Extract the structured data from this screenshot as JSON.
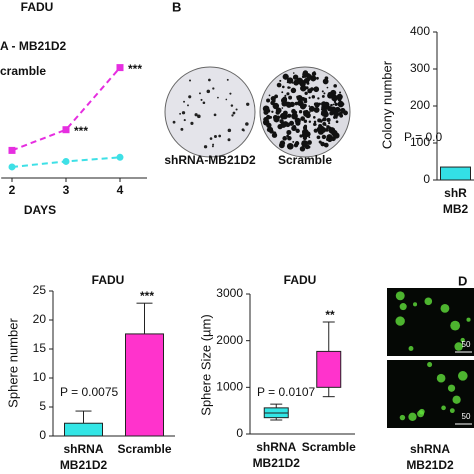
{
  "figure": {
    "panel_labels": [
      "B",
      "D"
    ],
    "colony_captions": [
      "shRNA-MB21D2",
      "Scramble"
    ],
    "micrograph_scale_labels": [
      "50",
      "50"
    ],
    "micrograph_caption": "shRNA MB21D2"
  },
  "chart_data": [
    {
      "type": "line",
      "title": "FADU",
      "x_label": "DAYS",
      "x": [
        2,
        3,
        4
      ],
      "xlim": [
        1.8,
        4.5
      ],
      "xticks": [
        2,
        3,
        4
      ],
      "ylim": [
        0,
        100
      ],
      "series": [
        {
          "name": "A - MB21D2",
          "color": "#3ee0e6",
          "values": [
            8,
            12,
            15
          ]
        },
        {
          "name": "cramble",
          "color": "#e62ee0",
          "values": [
            20,
            35,
            80
          ]
        }
      ],
      "annotations": [
        "***",
        "***"
      ]
    },
    {
      "type": "bar",
      "y_label": "Colony number",
      "categories": [
        "shR MB2"
      ],
      "values": [
        35
      ],
      "colors": [
        "#33e0e6"
      ],
      "ylim": [
        0,
        400
      ],
      "yticks": [
        0,
        100,
        200,
        300,
        400
      ],
      "annotations": [
        "P = 0.0"
      ]
    },
    {
      "type": "bar",
      "title": "FADU",
      "y_label": "Sphere number",
      "categories": [
        "shRNA MB21D2",
        "Scramble"
      ],
      "values": [
        2.2,
        17.6
      ],
      "errors": [
        2.1,
        5.3
      ],
      "colors": [
        "#33e6e6",
        "#ff33cc"
      ],
      "ylim": [
        0,
        25
      ],
      "yticks": [
        0,
        5,
        10,
        15,
        20,
        25
      ],
      "annotations": [
        "P = 0.0075",
        "***"
      ]
    },
    {
      "type": "box",
      "title": "FADU",
      "y_label": "Sphere Size (µm)",
      "categories": [
        "shRNA MB21D2",
        "Scramble"
      ],
      "boxes": [
        {
          "min": 300,
          "q1": 350,
          "median": 450,
          "q3": 560,
          "max": 640
        },
        {
          "min": 800,
          "q1": 1000,
          "q3": 1770,
          "max": 2400
        }
      ],
      "colors": [
        "#33e6e6",
        "#ff33cc"
      ],
      "ylim": [
        0,
        3000
      ],
      "yticks": [
        0,
        1000,
        2000,
        3000
      ],
      "annotations": [
        "P = 0.0107",
        "**"
      ]
    }
  ]
}
